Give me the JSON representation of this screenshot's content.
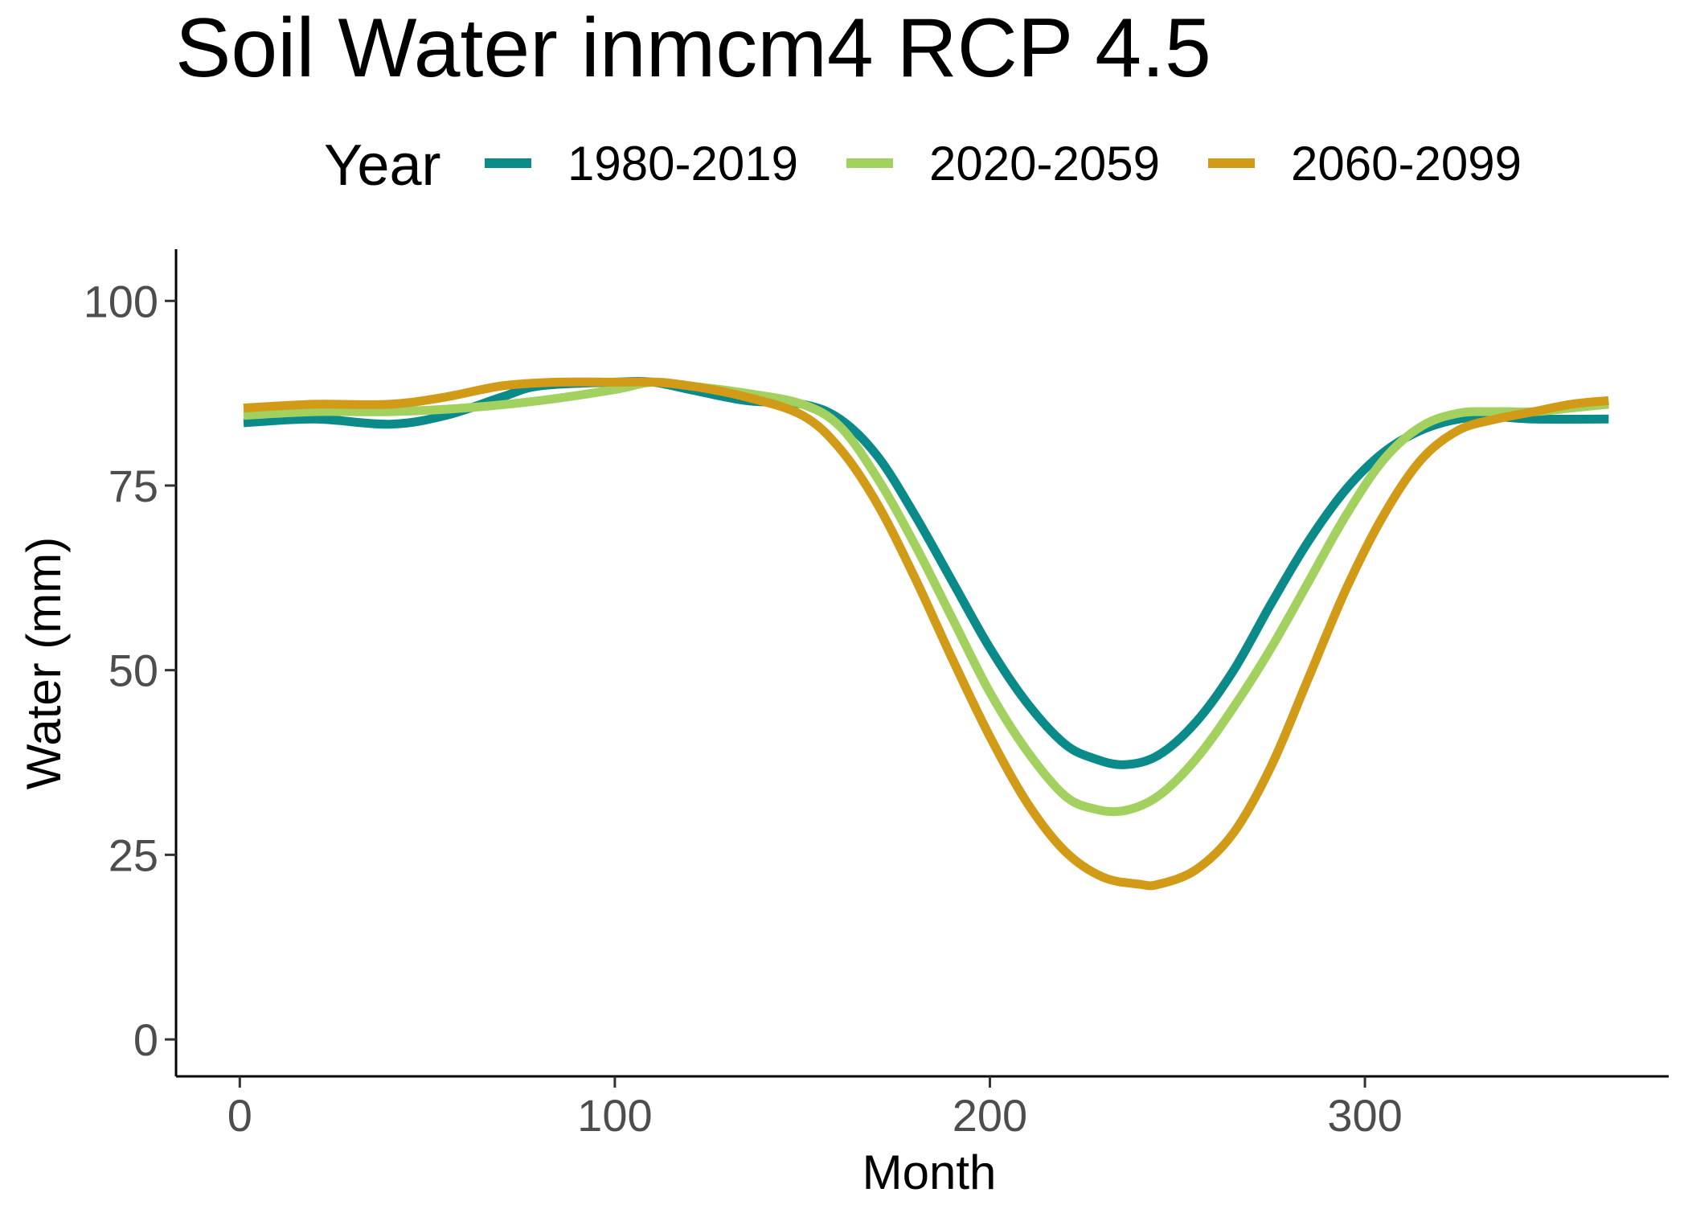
{
  "chart_data": {
    "type": "line",
    "title": "Soil Water inmcm4 RCP 4.5",
    "xlabel": "Month",
    "ylabel": "Water (mm)",
    "xlim": [
      -17,
      381
    ],
    "ylim": [
      -5,
      107
    ],
    "x_ticks": [
      0,
      100,
      200,
      300
    ],
    "y_ticks": [
      0,
      25,
      50,
      75,
      100
    ],
    "grid": false,
    "legend": {
      "title": "Year",
      "position": "top"
    },
    "series": [
      {
        "name": "1980-2019",
        "color": "#0b8a8a",
        "x": [
          1,
          20,
          40,
          55,
          70,
          80,
          100,
          110,
          120,
          135,
          150,
          160,
          170,
          180,
          190,
          200,
          210,
          220,
          228,
          236,
          245,
          255,
          265,
          275,
          285,
          295,
          305,
          315,
          325,
          335,
          345,
          365
        ],
        "y": [
          83.5,
          84,
          83.3,
          84.5,
          87,
          88.5,
          89,
          89,
          88,
          86.5,
          86,
          84,
          79,
          71,
          62,
          53,
          45.5,
          40,
          38,
          37.2,
          38.5,
          43,
          50,
          59,
          67.5,
          74.5,
          79.5,
          82.5,
          84,
          84.3,
          84,
          84
        ]
      },
      {
        "name": "2020-2059",
        "color": "#a2d15f",
        "x": [
          1,
          20,
          40,
          60,
          80,
          100,
          110,
          120,
          135,
          150,
          160,
          170,
          180,
          190,
          200,
          210,
          220,
          228,
          236,
          245,
          255,
          265,
          275,
          285,
          295,
          305,
          315,
          325,
          335,
          345,
          355,
          365
        ],
        "y": [
          84.5,
          85,
          85,
          85.5,
          86.5,
          88,
          89,
          88.5,
          87.5,
          86,
          83,
          76,
          67,
          57,
          47,
          39,
          33,
          31.2,
          31,
          33,
          38,
          45,
          53,
          62,
          71,
          78.5,
          83,
          84.8,
          85,
          85,
          85.5,
          86
        ]
      },
      {
        "name": "2060-2099",
        "color": "#d19b17",
        "x": [
          1,
          20,
          40,
          55,
          70,
          85,
          100,
          110,
          120,
          135,
          150,
          160,
          170,
          180,
          190,
          200,
          210,
          220,
          230,
          240,
          245,
          255,
          265,
          275,
          285,
          295,
          305,
          315,
          325,
          335,
          345,
          355,
          365
        ],
        "y": [
          85.5,
          86,
          86,
          87,
          88.5,
          89,
          89,
          89,
          88.5,
          87,
          84.5,
          80,
          72.5,
          62.5,
          51.5,
          41,
          32,
          25.5,
          22,
          21,
          21,
          23,
          28,
          37,
          49,
          61,
          71,
          78.5,
          82.5,
          84,
          85,
          86,
          86.5
        ]
      }
    ]
  }
}
